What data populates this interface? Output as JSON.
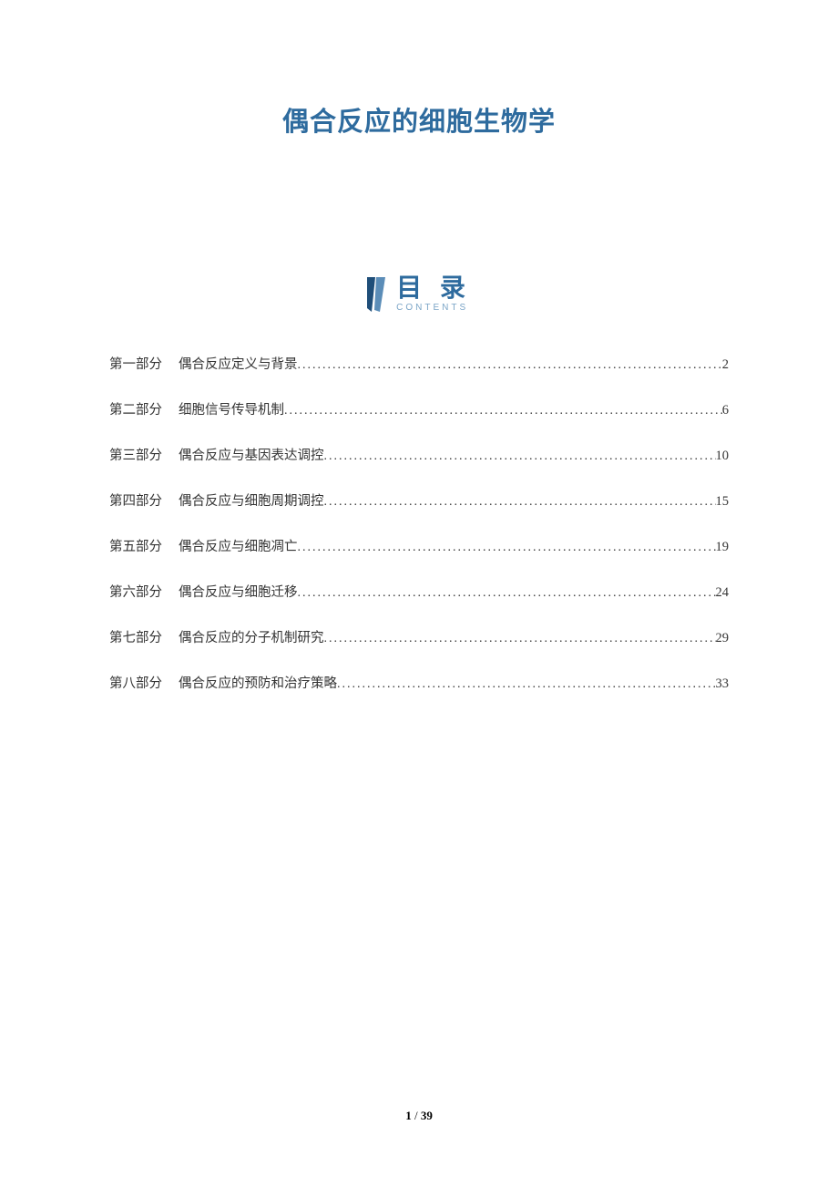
{
  "title": "偶合反应的细胞生物学",
  "title_color": "#2e6b9e",
  "toc": {
    "heading": "目 录",
    "subtitle": "CONTENTS",
    "heading_color": "#2e6b9e",
    "icon_color_dark": "#1f4e79",
    "icon_color_light": "#5b8db8",
    "entries": [
      {
        "part": "第一部分",
        "title": "偶合反应定义与背景",
        "page": "2"
      },
      {
        "part": "第二部分",
        "title": "细胞信号传导机制",
        "page": "6"
      },
      {
        "part": "第三部分",
        "title": "偶合反应与基因表达调控",
        "page": "10"
      },
      {
        "part": "第四部分",
        "title": "偶合反应与细胞周期调控",
        "page": "15"
      },
      {
        "part": "第五部分",
        "title": "偶合反应与细胞凋亡",
        "page": "19"
      },
      {
        "part": "第六部分",
        "title": "偶合反应与细胞迁移",
        "page": "24"
      },
      {
        "part": "第七部分",
        "title": "偶合反应的分子机制研究",
        "page": "29"
      },
      {
        "part": "第八部分",
        "title": "偶合反应的预防和治疗策略",
        "page": "33"
      }
    ]
  },
  "footer": {
    "current": "1",
    "sep": " / ",
    "total": "39"
  }
}
